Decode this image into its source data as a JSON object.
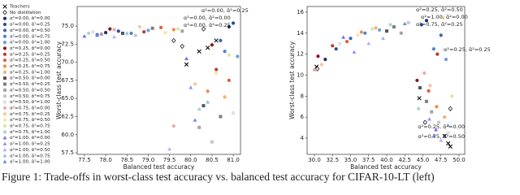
{
  "caption": "Figure 1: Trade-offs in worst-class test accuracy vs. balanced test accuracy for CIFAR-10-LT (left)",
  "chart_data": [
    {
      "type": "scatter",
      "xlabel": "Balanced test accuracy",
      "ylabel": "Worst-class test accuracy",
      "legend": "outside left",
      "xlim": [
        77.33,
        81.17
      ],
      "ylim": [
        57.28,
        77.7
      ],
      "xticks": [
        77.5,
        {
          "value": 78,
          "label": "78.0"
        },
        78.5,
        {
          "value": 79,
          "label": "79.0"
        },
        79.5,
        {
          "value": 80,
          "label": "80.0"
        },
        80.5,
        {
          "value": 81,
          "label": "81.0"
        }
      ],
      "yticks": [
        57.5,
        {
          "value": 60,
          "label": "60.0"
        },
        62.5,
        {
          "value": 65,
          "label": "65.0"
        },
        67.5,
        {
          "value": 70,
          "label": "70.0"
        },
        72.5,
        {
          "value": 75,
          "label": "75.0"
        }
      ],
      "annotations": [
        "α²=0.00, ᾱ²=0.25",
        "α²=0.00, ᾱ²=0.00",
        "α²=0.00, ᾱ²=0.25"
      ],
      "series": [
        {
          "name": "Teachers",
          "color": "#000000",
          "marker": "x",
          "x": [
            80.4,
            80.2,
            80.6,
            79.9
          ],
          "values": [
            72,
            71.5,
            73,
            69.7
          ]
        },
        {
          "name": "No distillation",
          "color": "#ffffff",
          "marker": "D",
          "x": [
            79.6,
            79.8,
            80.3
          ],
          "values": [
            73,
            72.2,
            74.6
          ]
        },
        {
          "name": "α²=0.00, ᾱ²=0.00",
          "color": "#1f2f6b",
          "marker": "o",
          "x": [
            78.0,
            80.9
          ],
          "values": [
            74.1,
            74.9
          ]
        },
        {
          "name": "α²=0.00, ᾱ²=0.25",
          "color": "#2b4a9a",
          "marker": "o",
          "x": [
            78.3,
            81.0
          ],
          "values": [
            74.3,
            75.4
          ]
        },
        {
          "name": "α²=0.00, ᾱ²=0.50",
          "color": "#3a66b8",
          "marker": "o",
          "x": [
            77.8,
            80.7
          ],
          "values": [
            73.8,
            73.0
          ]
        },
        {
          "name": "α²=0.00, ᾱ²=0.75",
          "color": "#4f83cc",
          "marker": "o",
          "x": [
            78.6,
            80.8
          ],
          "values": [
            74.0,
            71.5
          ]
        },
        {
          "name": "α²=0.00, ᾱ²=1.00",
          "color": "#6aa0de",
          "marker": "o",
          "x": [
            79.0,
            81.1
          ],
          "values": [
            74.4,
            70.8
          ]
        },
        {
          "name": "α²=0.25, ᾱ²=0.00",
          "color": "#8b1a1a",
          "marker": "o",
          "x": [
            78.1,
            80.5
          ],
          "values": [
            74.6,
            72.4
          ]
        },
        {
          "name": "α²=0.25, ᾱ²=0.25",
          "color": "#c0392b",
          "marker": "o",
          "x": [
            78.9,
            80.6
          ],
          "values": [
            74.2,
            69.0
          ]
        },
        {
          "name": "α²=0.25, ᾱ²=0.50",
          "color": "#e0603a",
          "marker": "o",
          "x": [
            79.3,
            80.9
          ],
          "values": [
            74.8,
            67.5
          ]
        },
        {
          "name": "α²=0.25, ᾱ²=0.75",
          "color": "#f08a4b",
          "marker": "o",
          "x": [
            79.6,
            80.4
          ],
          "values": [
            74.5,
            66.0
          ]
        },
        {
          "name": "α²=0.25, ᾱ²=1.00",
          "color": "#f6b26b",
          "marker": "o",
          "x": [
            77.9,
            80.8
          ],
          "values": [
            73.9,
            65.2
          ]
        },
        {
          "name": "α²=0.50, ᾱ²=0.00",
          "color": "#555555",
          "marker": "s",
          "x": [
            78.4,
            80.3
          ],
          "values": [
            74.0,
            64.0
          ]
        },
        {
          "name": "α²=0.50, ᾱ²=0.25",
          "color": "#7f7f7f",
          "marker": "s",
          "x": [
            79.1,
            80.7
          ],
          "values": [
            74.7,
            62.5
          ]
        },
        {
          "name": "α²=0.50, ᾱ²=0.50",
          "color": "#a6a6a6",
          "marker": "s",
          "x": [
            79.8,
            80.2
          ],
          "values": [
            74.3,
            61.0
          ]
        },
        {
          "name": "α²=0.50, ᾱ²=0.75",
          "color": "#c8c8c8",
          "marker": "s",
          "x": [
            78.7,
            80.5
          ],
          "values": [
            73.7,
            59.0
          ]
        },
        {
          "name": "α²=0.50, ᾱ²=1.00",
          "color": "#e0e0e0",
          "marker": "s",
          "x": [
            77.7,
            81.0
          ],
          "values": [
            74.2,
            63.0
          ]
        },
        {
          "name": "α²=0.75, ᾱ²=0.00",
          "color": "#f4a6a6",
          "marker": "o",
          "x": [
            78.2,
            79.6
          ],
          "values": [
            74.5,
            61.2
          ]
        },
        {
          "name": "α²=0.75, ᾱ²=0.25",
          "color": "#f7c59f",
          "marker": "o",
          "x": [
            78.8,
            80.1
          ],
          "values": [
            74.9,
            67.0
          ]
        },
        {
          "name": "α²=0.75, ᾱ²=0.50",
          "color": "#fbe3a0",
          "marker": "o",
          "x": [
            79.4,
            80.6
          ],
          "values": [
            74.1,
            68.5
          ]
        },
        {
          "name": "α²=0.75, ᾱ²=0.75",
          "color": "#d4e9a8",
          "marker": "o",
          "x": [
            79.7,
            80.9
          ],
          "values": [
            74.6,
            71.0
          ]
        },
        {
          "name": "α²=0.75, ᾱ²=1.00",
          "color": "#a8d8c8",
          "marker": "o",
          "x": [
            77.6,
            80.2
          ],
          "values": [
            74.0,
            63.5
          ]
        },
        {
          "name": "α²=1.00, ᾱ²=0.00",
          "color": "#7b68ee",
          "marker": "^",
          "x": [
            77.5,
            79.9
          ],
          "values": [
            73.6,
            70.5
          ]
        },
        {
          "name": "α²=1.00, ᾱ²=0.25",
          "color": "#9a8cf0",
          "marker": "^",
          "x": [
            77.9,
            80.0
          ],
          "values": [
            73.9,
            66.5
          ]
        },
        {
          "name": "α²=1.00, ᾱ²=0.50",
          "color": "#b5aef5",
          "marker": "^",
          "x": [
            78.2,
            79.5
          ],
          "values": [
            73.5,
            58.0
          ]
        },
        {
          "name": "α²=1.00, ᾱ²=0.75",
          "color": "#8fb8f0",
          "marker": "^",
          "x": [
            78.5,
            80.4
          ],
          "values": [
            74.0,
            64.5
          ]
        },
        {
          "name": "α²=1.00, ᾱ²=1.00",
          "color": "#6c8ed9",
          "marker": "^",
          "x": [
            77.8,
            80.1
          ],
          "values": [
            73.7,
            62.0
          ]
        }
      ]
    },
    {
      "type": "scatter",
      "xlabel": "Balanced test accuracy",
      "ylabel": "Worst-class test accuracy",
      "xlim": [
        28.99,
        50.79
      ],
      "ylim": [
        2.45,
        16.54
      ],
      "xticks": [
        {
          "value": 30,
          "label": "30.0"
        },
        32.5,
        {
          "value": 35,
          "label": "35.0"
        },
        37.5,
        {
          "value": 40,
          "label": "40.0"
        },
        42.5,
        {
          "value": 45,
          "label": "45.0"
        },
        47.5,
        {
          "value": 50,
          "label": "50.0"
        }
      ],
      "yticks": [
        4,
        6,
        8,
        10,
        12,
        14,
        16
      ],
      "annotations": [
        "α²=0.25, ᾱ²=0.50",
        "α²=1.00, ᾱ²=0.00",
        "α²=0.75, ᾱ²=0.25",
        "α²=0.25, ᾱ²=0.25",
        "α²=0.25, ᾱ²=0.00",
        "α²=0.75, ᾱ²=0.50"
      ],
      "series": [
        {
          "color": "#000000",
          "marker": "x",
          "x": [
            30.3,
            48.5,
            48.8,
            48.0,
            44.5
          ],
          "values": [
            10.8,
            3.5,
            3.2,
            4.2,
            7.8
          ]
        },
        {
          "color": "#ffffff",
          "marker": "D",
          "x": [
            48.8,
            45.3,
            30.4
          ],
          "values": [
            6.8,
            5.5,
            10.6
          ]
        },
        {
          "color": "#1f2f6b",
          "marker": "o",
          "x": [
            31.5,
            45.5
          ],
          "values": [
            11.5,
            15.2
          ]
        },
        {
          "color": "#2b4a9a",
          "marker": "o",
          "x": [
            33,
            44.8
          ],
          "values": [
            12.5,
            14.8
          ]
        },
        {
          "color": "#3a66b8",
          "marker": "o",
          "x": [
            35,
            47.5
          ],
          "values": [
            13.5,
            13.8
          ]
        },
        {
          "color": "#4f83cc",
          "marker": "o",
          "x": [
            37,
            46.5
          ],
          "values": [
            14,
            12.5
          ]
        },
        {
          "color": "#6aa0de",
          "marker": "o",
          "x": [
            39,
            48.2
          ],
          "values": [
            14.3,
            11.5
          ]
        },
        {
          "color": "#8b1a1a",
          "marker": "o",
          "x": [
            30.5,
            44.2
          ],
          "values": [
            11.8,
            9.5
          ]
        },
        {
          "color": "#c0392b",
          "marker": "o",
          "x": [
            32.5,
            47.0
          ],
          "values": [
            12.8,
            12.0
          ]
        },
        {
          "color": "#e0603a",
          "marker": "o",
          "x": [
            34.5,
            45.8
          ],
          "values": [
            13.2,
            8.5
          ]
        },
        {
          "color": "#f08a4b",
          "marker": "o",
          "x": [
            36.5,
            46.9
          ],
          "values": [
            14.1,
            7.0
          ]
        },
        {
          "color": "#f6b26b",
          "marker": "o",
          "x": [
            38.5,
            48.0
          ],
          "values": [
            14.5,
            6.0
          ]
        },
        {
          "color": "#555555",
          "marker": "s",
          "x": [
            40,
            44.6
          ],
          "values": [
            14.2,
            8.8
          ]
        },
        {
          "color": "#7f7f7f",
          "marker": "s",
          "x": [
            41,
            45.5
          ],
          "values": [
            14.6,
            7.5
          ]
        },
        {
          "color": "#a6a6a6",
          "marker": "s",
          "x": [
            42,
            46.2
          ],
          "values": [
            14.0,
            6.5
          ]
        },
        {
          "color": "#c8c8c8",
          "marker": "s",
          "x": [
            43,
            47.2
          ],
          "values": [
            15.0,
            5.5
          ]
        },
        {
          "color": "#e0e0e0",
          "marker": "s",
          "x": [
            33.5,
            48.5
          ],
          "values": [
            13.0,
            4.5
          ]
        },
        {
          "color": "#f4a6a6",
          "marker": "o",
          "x": [
            30,
            45.2
          ],
          "values": [
            10.5,
            10.2
          ]
        },
        {
          "color": "#f7c59f",
          "marker": "o",
          "x": [
            31,
            46.0
          ],
          "values": [
            11.0,
            9.0
          ]
        },
        {
          "color": "#fbe3a0",
          "marker": "o",
          "x": [
            36,
            47.8
          ],
          "values": [
            13.8,
            15.5
          ]
        },
        {
          "color": "#d4e9a8",
          "marker": "o",
          "x": [
            38,
            49.0
          ],
          "values": [
            14.4,
            8.0
          ]
        },
        {
          "color": "#a8d8c8",
          "marker": "o",
          "x": [
            40.5,
            44.4
          ],
          "values": [
            14.8,
            6.8
          ]
        },
        {
          "color": "#7b68ee",
          "marker": "^",
          "x": [
            34,
            46.8
          ],
          "values": [
            13.6,
            4.8
          ]
        },
        {
          "color": "#9a8cf0",
          "marker": "^",
          "x": [
            35.5,
            45.9
          ],
          "values": [
            12.2,
            5.8
          ]
        },
        {
          "color": "#b5aef5",
          "marker": "^",
          "x": [
            37.5,
            47.5
          ],
          "values": [
            13.0,
            3.8
          ]
        },
        {
          "color": "#8fb8f0",
          "marker": "^",
          "x": [
            39.5,
            48.5
          ],
          "values": [
            13.5,
            5.2
          ]
        },
        {
          "color": "#6c8ed9",
          "marker": "^",
          "x": [
            42.5,
            46.5
          ],
          "values": [
            14.9,
            4.2
          ]
        }
      ]
    }
  ]
}
